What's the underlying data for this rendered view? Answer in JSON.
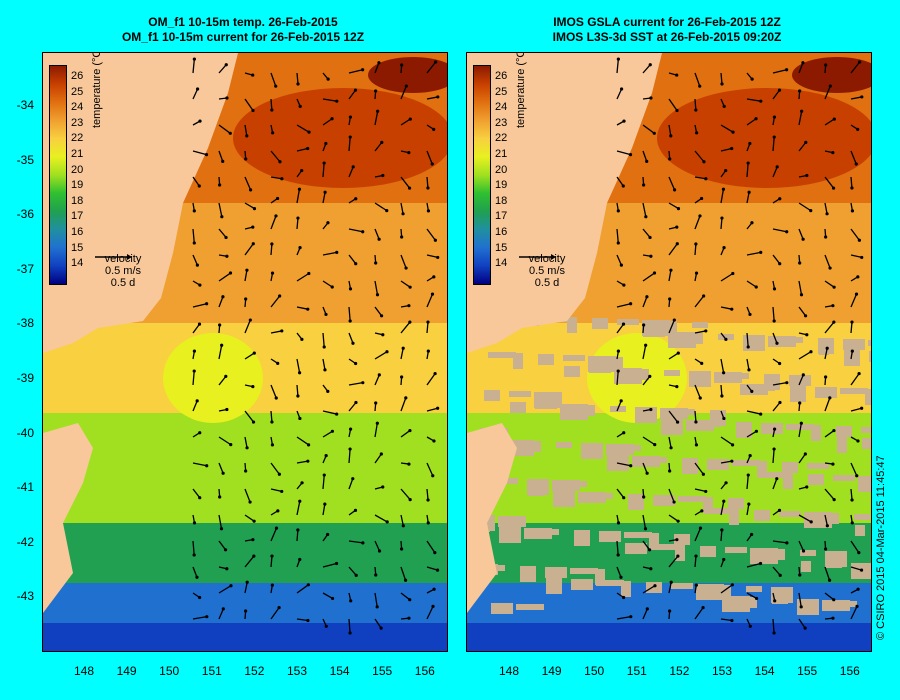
{
  "left_panel": {
    "title_line1": "OM_f1 10-15m temp. 26-Feb-2015",
    "title_line2": "OM_f1 10-15m current for 26-Feb-2015 12Z"
  },
  "right_panel": {
    "title_line1": "IMOS GSLA current for 26-Feb-2015 12Z",
    "title_line2": "IMOS L3S-3d SST at 26-Feb-2015 09:20Z"
  },
  "colorbar": {
    "label": "temperature (°C)",
    "ticks": [
      "26",
      "25",
      "24",
      "23",
      "22",
      "21",
      "20",
      "19",
      "18",
      "17",
      "16",
      "15",
      "14"
    ],
    "colors": [
      "#8b1a00",
      "#c84000",
      "#e07010",
      "#f0a030",
      "#f8d040",
      "#e8f020",
      "#a0e020",
      "#30c030",
      "#20a050",
      "#2090a0",
      "#2070d0",
      "#1040c0",
      "#000080"
    ]
  },
  "velocity_legend": {
    "label": "velocity",
    "speed": "0.5 m/s",
    "duration": "0.5 d"
  },
  "y_ticks": [
    "-34",
    "-35",
    "-36",
    "-37",
    "-38",
    "-39",
    "-40",
    "-41",
    "-42",
    "-43"
  ],
  "x_ticks": [
    "148",
    "149",
    "150",
    "151",
    "152",
    "153",
    "154",
    "155",
    "156"
  ],
  "copyright": "© CSIRO 2015   04-Mar-2015 11:45:47"
}
